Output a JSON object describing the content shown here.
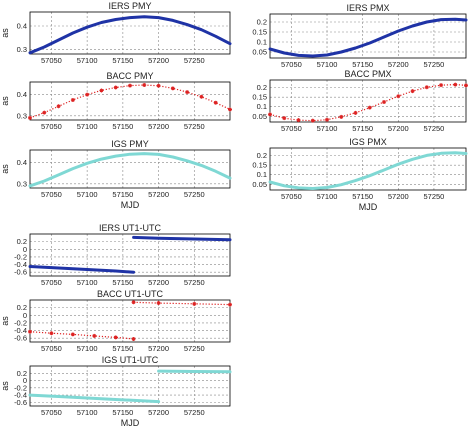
{
  "colors": {
    "iers": "#1f33a6",
    "bacc": "#dd2222",
    "igs": "#7fd8d4",
    "grid": "#888888",
    "frame": "#000000"
  },
  "chart_data": [
    {
      "id": "iers-pmy",
      "type": "line",
      "title": "IERS PMY",
      "ylabel": "as",
      "xlabel": "",
      "xlim": [
        57020,
        57300
      ],
      "ylim": [
        0.28,
        0.46
      ],
      "xticks": [
        57050,
        57100,
        57150,
        57200,
        57250
      ],
      "yticks": [
        0.3,
        0.4
      ],
      "xtick_labels": [
        "57050",
        "57100",
        "57150",
        "57200",
        "57250"
      ],
      "ytick_labels": [
        "0.3",
        "0.4"
      ],
      "grid": true,
      "color": "#1f33a6",
      "marker": "line",
      "stroke": 3,
      "series": [
        {
          "points": [
            [
              57020,
              0.285
            ],
            [
              57040,
              0.31
            ],
            [
              57060,
              0.34
            ],
            [
              57080,
              0.37
            ],
            [
              57100,
              0.395
            ],
            [
              57120,
              0.415
            ],
            [
              57140,
              0.428
            ],
            [
              57160,
              0.436
            ],
            [
              57180,
              0.44
            ],
            [
              57200,
              0.436
            ],
            [
              57220,
              0.424
            ],
            [
              57240,
              0.406
            ],
            [
              57260,
              0.384
            ],
            [
              57280,
              0.356
            ],
            [
              57300,
              0.324
            ]
          ]
        }
      ]
    },
    {
      "id": "iers-pmx",
      "type": "line",
      "title": "IERS PMX",
      "ylabel": "",
      "xlabel": "",
      "xlim": [
        57020,
        57295
      ],
      "ylim": [
        0.02,
        0.24
      ],
      "xticks": [
        57050,
        57100,
        57150,
        57200,
        57250
      ],
      "yticks": [
        0.05,
        0.1,
        0.15,
        0.2
      ],
      "xtick_labels": [
        "57050",
        "57100",
        "57150",
        "57200",
        "57250"
      ],
      "ytick_labels": [
        "0.05",
        "0.1",
        "0.15",
        "0.2"
      ],
      "grid": true,
      "color": "#1f33a6",
      "marker": "line",
      "stroke": 3,
      "series": [
        {
          "points": [
            [
              57020,
              0.065
            ],
            [
              57040,
              0.045
            ],
            [
              57060,
              0.033
            ],
            [
              57080,
              0.03
            ],
            [
              57100,
              0.035
            ],
            [
              57120,
              0.05
            ],
            [
              57140,
              0.07
            ],
            [
              57160,
              0.095
            ],
            [
              57180,
              0.125
            ],
            [
              57200,
              0.155
            ],
            [
              57220,
              0.18
            ],
            [
              57240,
              0.2
            ],
            [
              57260,
              0.212
            ],
            [
              57280,
              0.214
            ],
            [
              57295,
              0.21
            ]
          ]
        }
      ]
    },
    {
      "id": "bacc-pmy",
      "type": "line",
      "title": "BACC PMY",
      "ylabel": "as",
      "xlabel": "",
      "xlim": [
        57020,
        57300
      ],
      "ylim": [
        0.28,
        0.46
      ],
      "xticks": [
        57050,
        57100,
        57150,
        57200,
        57250
      ],
      "yticks": [
        0.3,
        0.4
      ],
      "xtick_labels": [
        "57050",
        "57100",
        "57150",
        "57200",
        "57250"
      ],
      "ytick_labels": [
        "0.3",
        "0.4"
      ],
      "grid": true,
      "color": "#dd2222",
      "marker": "star",
      "stroke": 1,
      "series": [
        {
          "points": [
            [
              57020,
              0.29
            ],
            [
              57040,
              0.315
            ],
            [
              57060,
              0.345
            ],
            [
              57080,
              0.375
            ],
            [
              57100,
              0.4
            ],
            [
              57120,
              0.42
            ],
            [
              57140,
              0.434
            ],
            [
              57160,
              0.443
            ],
            [
              57180,
              0.446
            ],
            [
              57200,
              0.442
            ],
            [
              57220,
              0.43
            ],
            [
              57240,
              0.412
            ],
            [
              57260,
              0.39
            ],
            [
              57280,
              0.362
            ],
            [
              57300,
              0.33
            ]
          ]
        }
      ]
    },
    {
      "id": "bacc-pmx",
      "type": "line",
      "title": "BACC PMX",
      "ylabel": "",
      "xlabel": "",
      "xlim": [
        57020,
        57295
      ],
      "ylim": [
        0.02,
        0.24
      ],
      "xticks": [
        57050,
        57100,
        57150,
        57200,
        57250
      ],
      "yticks": [
        0.05,
        0.1,
        0.15,
        0.2
      ],
      "xtick_labels": [
        "57050",
        "57100",
        "57150",
        "57200",
        "57250"
      ],
      "ytick_labels": [
        "0.05",
        "0.1",
        "0.15",
        "0.2"
      ],
      "grid": true,
      "color": "#dd2222",
      "marker": "star",
      "stroke": 1,
      "series": [
        {
          "points": [
            [
              57020,
              0.06
            ],
            [
              57040,
              0.04
            ],
            [
              57060,
              0.03
            ],
            [
              57080,
              0.027
            ],
            [
              57100,
              0.032
            ],
            [
              57120,
              0.047
            ],
            [
              57140,
              0.068
            ],
            [
              57160,
              0.095
            ],
            [
              57180,
              0.125
            ],
            [
              57200,
              0.155
            ],
            [
              57220,
              0.182
            ],
            [
              57240,
              0.202
            ],
            [
              57260,
              0.213
            ],
            [
              57280,
              0.216
            ],
            [
              57295,
              0.212
            ]
          ]
        }
      ]
    },
    {
      "id": "igs-pmy",
      "type": "line",
      "title": "IGS PMY",
      "ylabel": "as",
      "xlabel": "MJD",
      "xlim": [
        57020,
        57300
      ],
      "ylim": [
        0.28,
        0.46
      ],
      "xticks": [
        57050,
        57100,
        57150,
        57200,
        57250
      ],
      "yticks": [
        0.3,
        0.4
      ],
      "xtick_labels": [
        "57050",
        "57100",
        "57150",
        "57200",
        "57250"
      ],
      "ytick_labels": [
        "0.3",
        "0.4"
      ],
      "grid": true,
      "color": "#7fd8d4",
      "marker": "line",
      "stroke": 3,
      "series": [
        {
          "points": [
            [
              57020,
              0.29
            ],
            [
              57040,
              0.313
            ],
            [
              57060,
              0.342
            ],
            [
              57080,
              0.372
            ],
            [
              57100,
              0.397
            ],
            [
              57120,
              0.417
            ],
            [
              57140,
              0.431
            ],
            [
              57160,
              0.44
            ],
            [
              57180,
              0.443
            ],
            [
              57200,
              0.439
            ],
            [
              57220,
              0.427
            ],
            [
              57240,
              0.409
            ],
            [
              57260,
              0.387
            ],
            [
              57280,
              0.359
            ],
            [
              57300,
              0.327
            ]
          ]
        }
      ]
    },
    {
      "id": "igs-pmx",
      "type": "line",
      "title": "IGS PMX",
      "ylabel": "",
      "xlabel": "MJD",
      "xlim": [
        57020,
        57295
      ],
      "ylim": [
        0.02,
        0.24
      ],
      "xticks": [
        57050,
        57100,
        57150,
        57200,
        57250
      ],
      "yticks": [
        0.05,
        0.1,
        0.15,
        0.2
      ],
      "xtick_labels": [
        "57050",
        "57100",
        "57150",
        "57200",
        "57250"
      ],
      "ytick_labels": [
        "0.05",
        "0.1",
        "0.15",
        "0.2"
      ],
      "grid": true,
      "color": "#7fd8d4",
      "marker": "line",
      "stroke": 3,
      "series": [
        {
          "points": [
            [
              57020,
              0.062
            ],
            [
              57040,
              0.042
            ],
            [
              57060,
              0.031
            ],
            [
              57080,
              0.028
            ],
            [
              57100,
              0.033
            ],
            [
              57120,
              0.048
            ],
            [
              57140,
              0.069
            ],
            [
              57160,
              0.095
            ],
            [
              57180,
              0.125
            ],
            [
              57200,
              0.155
            ],
            [
              57220,
              0.181
            ],
            [
              57240,
              0.201
            ],
            [
              57260,
              0.212
            ],
            [
              57280,
              0.215
            ],
            [
              57295,
              0.211
            ]
          ]
        }
      ]
    },
    {
      "id": "iers-ut1",
      "type": "line",
      "title": "IERS UT1-UTC",
      "ylabel": "",
      "xlabel": "",
      "xlim": [
        57020,
        57300
      ],
      "ylim": [
        -0.7,
        0.4
      ],
      "xticks": [
        57050,
        57100,
        57150,
        57200,
        57250
      ],
      "yticks": [
        0.2,
        0,
        -0.2,
        -0.4,
        -0.6
      ],
      "xtick_labels": [
        "57050",
        "57100",
        "57150",
        "57200",
        "57250"
      ],
      "ytick_labels": [
        "0.2",
        "0",
        "-0.2",
        "-0.4",
        "-0.6"
      ],
      "grid": true,
      "color": "#1f33a6",
      "marker": "line",
      "stroke": 3,
      "series": [
        {
          "points": [
            [
              57020,
              -0.45
            ],
            [
              57060,
              -0.49
            ],
            [
              57100,
              -0.53
            ],
            [
              57140,
              -0.57
            ],
            [
              57165,
              -0.6
            ]
          ]
        },
        {
          "points": [
            [
              57165,
              0.31
            ],
            [
              57200,
              0.29
            ],
            [
              57250,
              0.27
            ],
            [
              57300,
              0.25
            ]
          ]
        }
      ]
    },
    {
      "id": "bacc-ut1",
      "type": "line",
      "title": "BACC UT1-UTC",
      "ylabel": "as",
      "xlabel": "",
      "xlim": [
        57020,
        57300
      ],
      "ylim": [
        -0.7,
        0.4
      ],
      "xticks": [
        57050,
        57100,
        57150,
        57200,
        57250
      ],
      "yticks": [
        0.2,
        0,
        -0.2,
        -0.4,
        -0.6
      ],
      "xtick_labels": [
        "57050",
        "57100",
        "57150",
        "57200",
        "57250"
      ],
      "ytick_labels": [
        "0.2",
        "0",
        "-0.2",
        "-0.4",
        "-0.6"
      ],
      "grid": true,
      "color": "#dd2222",
      "marker": "star",
      "stroke": 1,
      "series": [
        {
          "points": [
            [
              57020,
              -0.43
            ],
            [
              57050,
              -0.47
            ],
            [
              57080,
              -0.5
            ],
            [
              57110,
              -0.54
            ],
            [
              57140,
              -0.58
            ],
            [
              57165,
              -0.62
            ]
          ]
        },
        {
          "points": [
            [
              57165,
              0.34
            ],
            [
              57200,
              0.32
            ],
            [
              57250,
              0.3
            ],
            [
              57300,
              0.28
            ]
          ]
        }
      ]
    },
    {
      "id": "igs-ut1",
      "type": "line",
      "title": "IGS UT1-UTC",
      "ylabel": "as",
      "xlabel": "MJD",
      "xlim": [
        57020,
        57300
      ],
      "ylim": [
        -0.7,
        0.4
      ],
      "xticks": [
        57050,
        57100,
        57150,
        57200,
        57250
      ],
      "yticks": [
        0.2,
        0,
        -0.2,
        -0.4,
        -0.6
      ],
      "xtick_labels": [
        "57050",
        "57100",
        "57150",
        "57200",
        "57250"
      ],
      "ytick_labels": [
        "0.2",
        "0",
        "-0.2",
        "-0.4",
        "-0.6"
      ],
      "grid": true,
      "color": "#7fd8d4",
      "marker": "line",
      "stroke": 3,
      "series": [
        {
          "points": [
            [
              57020,
              -0.4
            ],
            [
              57060,
              -0.44
            ],
            [
              57100,
              -0.48
            ],
            [
              57140,
              -0.52
            ],
            [
              57200,
              -0.58
            ]
          ]
        },
        {
          "points": [
            [
              57200,
              0.26
            ],
            [
              57250,
              0.25
            ],
            [
              57300,
              0.24
            ]
          ]
        }
      ]
    }
  ]
}
